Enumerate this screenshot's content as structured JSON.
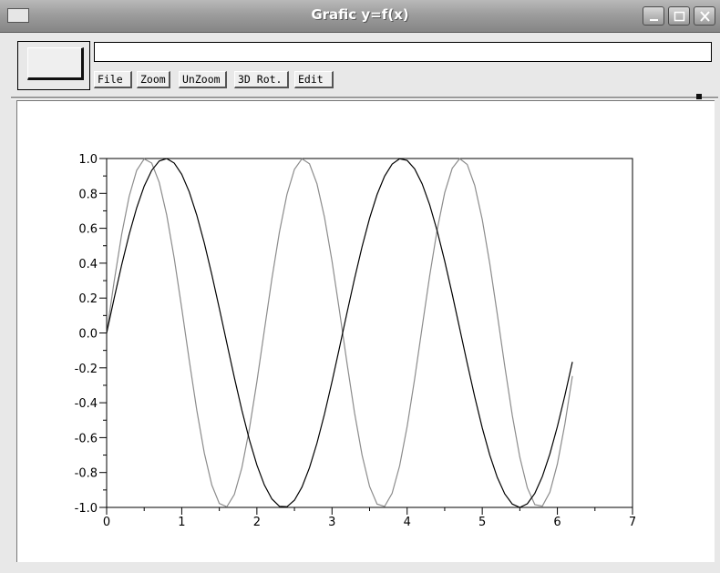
{
  "window": {
    "title": "Grafic y=f(x)"
  },
  "menu": {
    "file": "File",
    "zoom": "Zoom",
    "unzoom": "UnZoom",
    "rot3d": "3D Rot.",
    "edit": "Edit"
  },
  "message": "",
  "chart_data": {
    "type": "line",
    "title": "",
    "xlabel": "",
    "ylabel": "",
    "xlim": [
      0,
      7
    ],
    "ylim": [
      -1.0,
      1.0
    ],
    "x_ticks": [
      "0",
      "1",
      "2",
      "3",
      "4",
      "5",
      "6",
      "7"
    ],
    "y_ticks": [
      "-1.0",
      "-0.8",
      "-0.6",
      "-0.4",
      "-0.2",
      "0.0",
      "0.2",
      "0.4",
      "0.6",
      "0.8",
      "1.0"
    ],
    "grid": false,
    "legend": "none",
    "series": [
      {
        "color": "#000000",
        "function": "sin(2x)",
        "x_start": 0.0,
        "x_end": 6.2,
        "x_step": 0.1
      },
      {
        "color": "#8c8c8c",
        "function": "sin(3x)",
        "x_start": 0.0,
        "x_end": 6.2,
        "x_step": 0.1
      }
    ]
  }
}
